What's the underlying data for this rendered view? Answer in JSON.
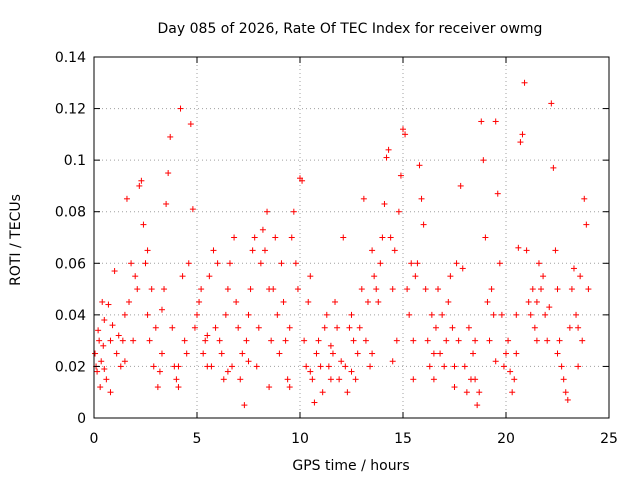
{
  "chart_data": {
    "type": "scatter",
    "title": "Day 085 of 2026, Rate Of TEC Index for receiver owmg",
    "xlabel": "GPS time / hours",
    "ylabel": "ROTI / TECUs",
    "xlim": [
      0,
      25
    ],
    "ylim": [
      0,
      0.14
    ],
    "x_ticks": [
      "0",
      "5",
      "10",
      "15",
      "20",
      "25"
    ],
    "y_ticks": [
      "0",
      "0.02",
      "0.04",
      "0.06",
      "0.08",
      "0.1",
      "0.12",
      "0.14"
    ],
    "grid": true,
    "marker": "+",
    "color": "#ff0000",
    "series": [
      {
        "points": [
          [
            0.05,
            0.025
          ],
          [
            0.1,
            0.02
          ],
          [
            0.15,
            0.018
          ],
          [
            0.2,
            0.034
          ],
          [
            0.25,
            0.03
          ],
          [
            0.3,
            0.012
          ],
          [
            0.35,
            0.022
          ],
          [
            0.4,
            0.045
          ],
          [
            0.45,
            0.028
          ],
          [
            0.5,
            0.019
          ],
          [
            0.6,
            0.015
          ],
          [
            0.7,
            0.044
          ],
          [
            0.8,
            0.01
          ],
          [
            0.9,
            0.036
          ],
          [
            1.0,
            0.057
          ],
          [
            1.1,
            0.025
          ],
          [
            1.2,
            0.032
          ],
          [
            1.3,
            0.02
          ],
          [
            1.4,
            0.03
          ],
          [
            1.5,
            0.04
          ],
          [
            1.6,
            0.085
          ],
          [
            1.7,
            0.045
          ],
          [
            1.8,
            0.06
          ],
          [
            1.9,
            0.03
          ],
          [
            2.0,
            0.055
          ],
          [
            2.1,
            0.05
          ],
          [
            2.2,
            0.09
          ],
          [
            2.3,
            0.092
          ],
          [
            2.4,
            0.075
          ],
          [
            2.5,
            0.06
          ],
          [
            2.6,
            0.04
          ],
          [
            2.7,
            0.03
          ],
          [
            2.8,
            0.05
          ],
          [
            2.9,
            0.02
          ],
          [
            3.0,
            0.035
          ],
          [
            3.1,
            0.012
          ],
          [
            3.2,
            0.018
          ],
          [
            3.3,
            0.025
          ],
          [
            3.4,
            0.05
          ],
          [
            3.5,
            0.083
          ],
          [
            3.6,
            0.095
          ],
          [
            3.7,
            0.109
          ],
          [
            3.8,
            0.035
          ],
          [
            3.9,
            0.02
          ],
          [
            4.0,
            0.015
          ],
          [
            4.1,
            0.02
          ],
          [
            4.2,
            0.12
          ],
          [
            4.3,
            0.055
          ],
          [
            4.4,
            0.03
          ],
          [
            4.5,
            0.025
          ],
          [
            4.6,
            0.06
          ],
          [
            4.7,
            0.114
          ],
          [
            4.8,
            0.081
          ],
          [
            4.9,
            0.035
          ],
          [
            5.0,
            0.04
          ],
          [
            5.1,
            0.045
          ],
          [
            5.2,
            0.05
          ],
          [
            5.3,
            0.025
          ],
          [
            5.4,
            0.03
          ],
          [
            5.5,
            0.02
          ],
          [
            5.6,
            0.055
          ],
          [
            5.7,
            0.02
          ],
          [
            5.8,
            0.065
          ],
          [
            5.9,
            0.035
          ],
          [
            6.0,
            0.06
          ],
          [
            6.1,
            0.03
          ],
          [
            6.2,
            0.025
          ],
          [
            6.3,
            0.015
          ],
          [
            6.4,
            0.04
          ],
          [
            6.5,
            0.05
          ],
          [
            6.6,
            0.06
          ],
          [
            6.7,
            0.02
          ],
          [
            6.8,
            0.07
          ],
          [
            6.9,
            0.045
          ],
          [
            7.0,
            0.035
          ],
          [
            7.1,
            0.015
          ],
          [
            7.2,
            0.025
          ],
          [
            7.3,
            0.005
          ],
          [
            7.4,
            0.03
          ],
          [
            7.5,
            0.04
          ],
          [
            7.6,
            0.05
          ],
          [
            7.7,
            0.065
          ],
          [
            7.8,
            0.07
          ],
          [
            7.9,
            0.02
          ],
          [
            8.0,
            0.035
          ],
          [
            8.1,
            0.06
          ],
          [
            8.2,
            0.073
          ],
          [
            8.3,
            0.065
          ],
          [
            8.4,
            0.08
          ],
          [
            8.5,
            0.05
          ],
          [
            8.6,
            0.03
          ],
          [
            8.7,
            0.05
          ],
          [
            8.8,
            0.07
          ],
          [
            8.9,
            0.04
          ],
          [
            9.0,
            0.025
          ],
          [
            9.1,
            0.06
          ],
          [
            9.2,
            0.045
          ],
          [
            9.3,
            0.03
          ],
          [
            9.4,
            0.015
          ],
          [
            9.5,
            0.035
          ],
          [
            9.6,
            0.07
          ],
          [
            9.7,
            0.08
          ],
          [
            9.8,
            0.06
          ],
          [
            9.9,
            0.05
          ],
          [
            10.0,
            0.093
          ],
          [
            10.1,
            0.092
          ],
          [
            10.2,
            0.03
          ],
          [
            10.3,
            0.02
          ],
          [
            10.4,
            0.045
          ],
          [
            10.5,
            0.055
          ],
          [
            10.6,
            0.015
          ],
          [
            10.7,
            0.006
          ],
          [
            10.8,
            0.025
          ],
          [
            10.9,
            0.03
          ],
          [
            11.0,
            0.02
          ],
          [
            11.1,
            0.01
          ],
          [
            11.2,
            0.035
          ],
          [
            11.3,
            0.04
          ],
          [
            11.4,
            0.02
          ],
          [
            11.5,
            0.015
          ],
          [
            11.6,
            0.025
          ],
          [
            11.7,
            0.045
          ],
          [
            11.8,
            0.035
          ],
          [
            11.9,
            0.015
          ],
          [
            12.0,
            0.022
          ],
          [
            12.1,
            0.07
          ],
          [
            12.2,
            0.02
          ],
          [
            12.3,
            0.01
          ],
          [
            12.4,
            0.035
          ],
          [
            12.5,
            0.04
          ],
          [
            12.6,
            0.03
          ],
          [
            12.7,
            0.015
          ],
          [
            12.8,
            0.025
          ],
          [
            12.9,
            0.035
          ],
          [
            13.0,
            0.05
          ],
          [
            13.1,
            0.085
          ],
          [
            13.2,
            0.03
          ],
          [
            13.3,
            0.045
          ],
          [
            13.4,
            0.02
          ],
          [
            13.5,
            0.065
          ],
          [
            13.6,
            0.055
          ],
          [
            13.7,
            0.05
          ],
          [
            13.8,
            0.045
          ],
          [
            13.9,
            0.06
          ],
          [
            14.0,
            0.07
          ],
          [
            14.1,
            0.083
          ],
          [
            14.2,
            0.101
          ],
          [
            14.3,
            0.104
          ],
          [
            14.4,
            0.07
          ],
          [
            14.5,
            0.05
          ],
          [
            14.6,
            0.065
          ],
          [
            14.7,
            0.03
          ],
          [
            14.8,
            0.08
          ],
          [
            14.9,
            0.094
          ],
          [
            15.0,
            0.112
          ],
          [
            15.1,
            0.11
          ],
          [
            15.2,
            0.05
          ],
          [
            15.3,
            0.04
          ],
          [
            15.4,
            0.06
          ],
          [
            15.5,
            0.03
          ],
          [
            15.6,
            0.055
          ],
          [
            15.7,
            0.06
          ],
          [
            15.8,
            0.098
          ],
          [
            15.9,
            0.085
          ],
          [
            16.0,
            0.075
          ],
          [
            16.1,
            0.05
          ],
          [
            16.2,
            0.03
          ],
          [
            16.3,
            0.02
          ],
          [
            16.4,
            0.04
          ],
          [
            16.5,
            0.015
          ],
          [
            16.6,
            0.035
          ],
          [
            16.7,
            0.05
          ],
          [
            16.8,
            0.025
          ],
          [
            16.9,
            0.04
          ],
          [
            17.0,
            0.02
          ],
          [
            17.1,
            0.03
          ],
          [
            17.2,
            0.045
          ],
          [
            17.3,
            0.055
          ],
          [
            17.4,
            0.035
          ],
          [
            17.5,
            0.02
          ],
          [
            17.6,
            0.06
          ],
          [
            17.7,
            0.03
          ],
          [
            17.8,
            0.09
          ],
          [
            17.9,
            0.058
          ],
          [
            18.0,
            0.02
          ],
          [
            18.1,
            0.01
          ],
          [
            18.2,
            0.035
          ],
          [
            18.3,
            0.015
          ],
          [
            18.4,
            0.025
          ],
          [
            18.5,
            0.03
          ],
          [
            18.6,
            0.005
          ],
          [
            18.7,
            0.01
          ],
          [
            18.8,
            0.115
          ],
          [
            18.9,
            0.1
          ],
          [
            19.0,
            0.07
          ],
          [
            19.1,
            0.045
          ],
          [
            19.2,
            0.03
          ],
          [
            19.3,
            0.05
          ],
          [
            19.4,
            0.04
          ],
          [
            19.5,
            0.115
          ],
          [
            19.6,
            0.087
          ],
          [
            19.7,
            0.06
          ],
          [
            19.8,
            0.04
          ],
          [
            19.9,
            0.02
          ],
          [
            20.0,
            0.025
          ],
          [
            20.1,
            0.03
          ],
          [
            20.2,
            0.018
          ],
          [
            20.3,
            0.01
          ],
          [
            20.4,
            0.015
          ],
          [
            20.5,
            0.04
          ],
          [
            20.6,
            0.066
          ],
          [
            20.7,
            0.107
          ],
          [
            20.8,
            0.11
          ],
          [
            20.9,
            0.13
          ],
          [
            21.0,
            0.065
          ],
          [
            21.1,
            0.045
          ],
          [
            21.2,
            0.04
          ],
          [
            21.3,
            0.05
          ],
          [
            21.4,
            0.035
          ],
          [
            21.5,
            0.045
          ],
          [
            21.6,
            0.06
          ],
          [
            21.7,
            0.05
          ],
          [
            21.8,
            0.055
          ],
          [
            21.9,
            0.04
          ],
          [
            22.0,
            0.03
          ],
          [
            22.1,
            0.043
          ],
          [
            22.2,
            0.122
          ],
          [
            22.3,
            0.097
          ],
          [
            22.4,
            0.065
          ],
          [
            22.5,
            0.05
          ],
          [
            22.6,
            0.03
          ],
          [
            22.7,
            0.02
          ],
          [
            22.8,
            0.015
          ],
          [
            22.9,
            0.01
          ],
          [
            23.0,
            0.007
          ],
          [
            23.1,
            0.035
          ],
          [
            23.2,
            0.05
          ],
          [
            23.3,
            0.058
          ],
          [
            23.4,
            0.04
          ],
          [
            23.5,
            0.02
          ],
          [
            23.6,
            0.055
          ],
          [
            23.7,
            0.03
          ],
          [
            23.8,
            0.085
          ],
          [
            23.9,
            0.075
          ],
          [
            24.0,
            0.05
          ],
          [
            0.5,
            0.038
          ],
          [
            1.5,
            0.022
          ],
          [
            2.6,
            0.065
          ],
          [
            3.3,
            0.042
          ],
          [
            4.1,
            0.012
          ],
          [
            5.5,
            0.032
          ],
          [
            6.5,
            0.018
          ],
          [
            7.5,
            0.022
          ],
          [
            8.5,
            0.012
          ],
          [
            9.5,
            0.012
          ],
          [
            10.5,
            0.018
          ],
          [
            11.5,
            0.028
          ],
          [
            12.5,
            0.018
          ],
          [
            13.5,
            0.025
          ],
          [
            14.5,
            0.022
          ],
          [
            15.5,
            0.015
          ],
          [
            16.5,
            0.025
          ],
          [
            17.5,
            0.012
          ],
          [
            18.5,
            0.015
          ],
          [
            19.5,
            0.022
          ],
          [
            20.5,
            0.025
          ],
          [
            21.5,
            0.03
          ],
          [
            22.5,
            0.025
          ],
          [
            23.5,
            0.035
          ],
          [
            0.8,
            0.03
          ]
        ]
      }
    ]
  }
}
